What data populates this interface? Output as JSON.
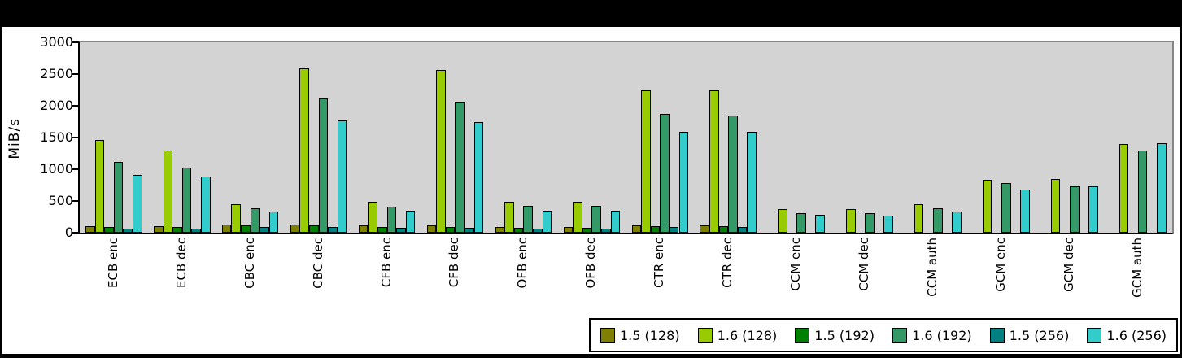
{
  "window": {
    "top_band": ""
  },
  "chart_data": {
    "type": "bar",
    "title": "",
    "ylabel": "MiB/s",
    "ylim": [
      0,
      3000
    ],
    "ytick_step": 500,
    "yticks": [
      "0",
      "500",
      "1000",
      "1500",
      "2000",
      "2500",
      "3000"
    ],
    "grid": false,
    "plot_bg": "#d3d3d3",
    "legend_position": "bottom-right",
    "categories": [
      "ECB enc",
      "ECB dec",
      "CBC enc",
      "CBC dec",
      "CFB enc",
      "CFB dec",
      "OFB enc",
      "OFB dec",
      "CTR enc",
      "CTR dec",
      "CCM enc",
      "CCM dec",
      "CCM auth",
      "GCM enc",
      "GCM dec",
      "GCM auth"
    ],
    "series": [
      {
        "name": "1.5 (128)",
        "color": "#808000",
        "values": [
          105,
          105,
          125,
          125,
          110,
          115,
          90,
          90,
          115,
          115,
          0,
          0,
          0,
          0,
          0,
          0
        ]
      },
      {
        "name": "1.6 (128)",
        "color": "#99CC00",
        "values": [
          1460,
          1300,
          455,
          2595,
          485,
          2565,
          485,
          485,
          2245,
          2245,
          375,
          375,
          450,
          835,
          850,
          1400
        ]
      },
      {
        "name": "1.5 (192)",
        "color": "#008000",
        "values": [
          90,
          90,
          110,
          110,
          95,
          95,
          75,
          75,
          100,
          100,
          0,
          0,
          0,
          0,
          0,
          0
        ]
      },
      {
        "name": "1.6 (192)",
        "color": "#339966",
        "values": [
          1120,
          1030,
          385,
          2110,
          415,
          2065,
          420,
          420,
          1875,
          1840,
          310,
          310,
          385,
          780,
          725,
          1300
        ]
      },
      {
        "name": "1.5 (256)",
        "color": "#008080",
        "values": [
          70,
          70,
          90,
          90,
          80,
          80,
          60,
          60,
          90,
          90,
          0,
          0,
          0,
          0,
          0,
          0
        ]
      },
      {
        "name": "1.6 (256)",
        "color": "#33CCCC",
        "values": [
          905,
          880,
          335,
          1770,
          350,
          1740,
          350,
          350,
          1590,
          1590,
          280,
          275,
          330,
          685,
          735,
          1405
        ]
      }
    ]
  }
}
